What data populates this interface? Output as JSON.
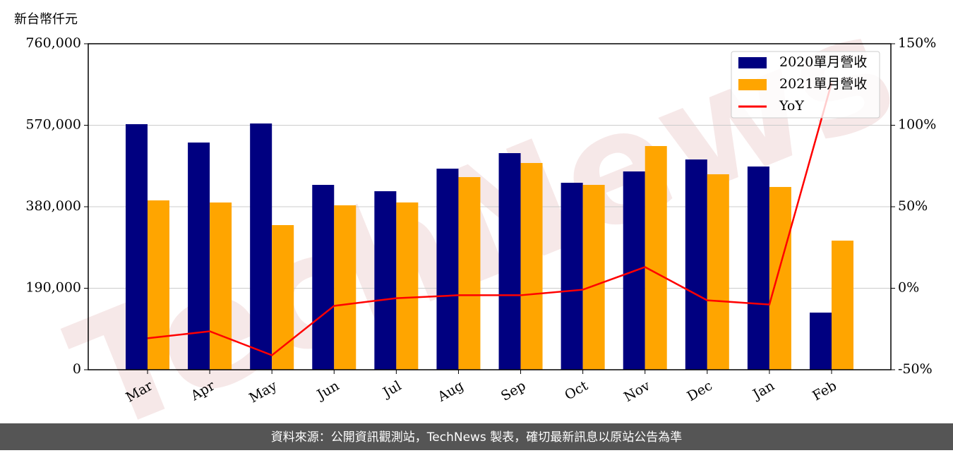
{
  "chart_data": {
    "type": "bar",
    "y_label": "新台幣仟元",
    "watermark": "TechNews",
    "footer": "資料來源：公開資訊觀測站，TechNews 製表，確切最新訊息以原站公告為準",
    "categories": [
      "Mar",
      "Apr",
      "May",
      "Jun",
      "Jul",
      "Aug",
      "Sep",
      "Oct",
      "Nov",
      "Dec",
      "Jan",
      "Feb"
    ],
    "series": [
      {
        "name": "2020單月營收",
        "color": "#000080",
        "type": "bar",
        "values": [
          572500,
          529700,
          574100,
          431000,
          416200,
          468800,
          505000,
          435900,
          462300,
          490200,
          473800,
          133200
        ]
      },
      {
        "name": "2021單月營收",
        "color": "#ffa500",
        "type": "bar",
        "values": [
          394800,
          389900,
          337200,
          383300,
          390000,
          449100,
          482000,
          431000,
          521500,
          455700,
          426100,
          301000
        ]
      },
      {
        "name": "YoY",
        "color": "#ff0000",
        "type": "line",
        "axis": "y2",
        "values": [
          -30.7,
          -26.4,
          -41.1,
          -10.8,
          -6.1,
          -4.3,
          -4.3,
          -0.9,
          13.0,
          -7.4,
          -10.0,
          126.0
        ]
      }
    ],
    "ylim": [
      0,
      760000
    ],
    "yticks": [
      0,
      {
        "value": 190000,
        "label": "190,000"
      },
      {
        "value": 380000,
        "label": "380,000"
      },
      {
        "value": 570000,
        "label": "570,000"
      },
      {
        "value": 760000,
        "label": "760,000"
      }
    ],
    "y2lim": [
      -50,
      150
    ],
    "y2ticks": [
      {
        "value": -50,
        "label": "-50%"
      },
      {
        "value": 0,
        "label": "0%"
      },
      {
        "value": 50,
        "label": "50%"
      },
      {
        "value": 100,
        "label": "100%"
      },
      {
        "value": 150,
        "label": "150%"
      }
    ],
    "grid": true,
    "legend": "upper right"
  }
}
